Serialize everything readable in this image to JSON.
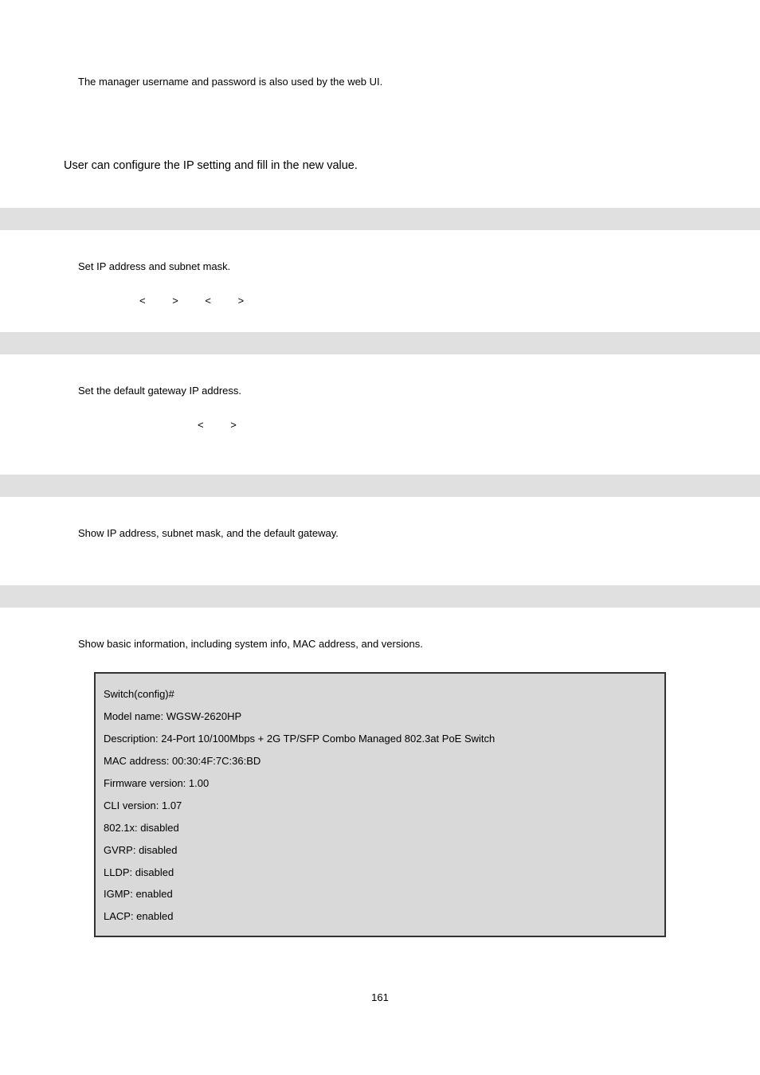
{
  "note": "The manager username and password is also used by the web UI.",
  "intro": "User can configure the IP setting and fill in the new value.",
  "block1": {
    "desc": "Set IP address and subnet mask.",
    "syntax": "< > < >"
  },
  "block2": {
    "desc": "Set the default gateway IP address.",
    "syntax": "< >"
  },
  "block3": {
    "desc": "Show IP address, subnet mask, and the default gateway."
  },
  "block4": {
    "desc": "Show basic information, including system info, MAC address, and versions."
  },
  "config_lines": [
    "Switch(config)#",
    "Model name: WGSW-2620HP",
    "Description: 24-Port 10/100Mbps + 2G TP/SFP Combo Managed 802.3at PoE Switch",
    "MAC address: 00:30:4F:7C:36:BD",
    "Firmware version: 1.00",
    "CLI version: 1.07",
    "802.1x: disabled",
    "GVRP: disabled",
    "LLDP: disabled",
    "IGMP: enabled",
    "LACP: enabled"
  ],
  "page_number": "161",
  "colors": {
    "gray_bar": "#e0e0e0",
    "config_bg": "#d9d9d9",
    "config_border": "#333333",
    "text": "#000000",
    "background": "#ffffff"
  }
}
